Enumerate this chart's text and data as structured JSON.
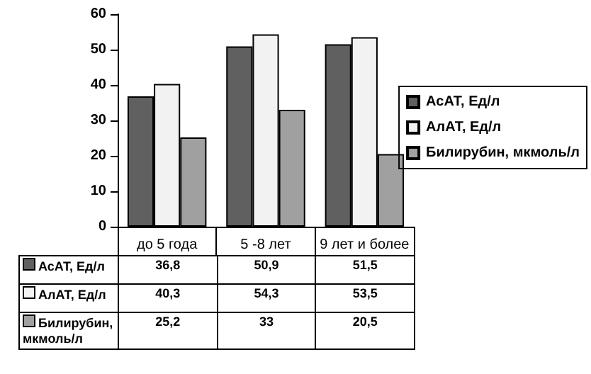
{
  "chart_data": {
    "type": "bar",
    "categories": [
      "до 5 года",
      "5 -8 лет",
      "9 лет и более"
    ],
    "series": [
      {
        "name": "АсАТ, Ед/л",
        "color": "#606060",
        "values": [
          36.8,
          50.9,
          51.5
        ],
        "value_labels": [
          "36,8",
          "50,9",
          "51,5"
        ]
      },
      {
        "name": "АлАТ, Ед/л",
        "color": "#f2f2f2",
        "values": [
          40.3,
          54.3,
          53.5
        ],
        "value_labels": [
          "40,3",
          "54,3",
          "53,5"
        ]
      },
      {
        "name": "Билирубин, мкмоль/л",
        "color": "#a0a0a0",
        "values": [
          25.2,
          33,
          20.5
        ],
        "value_labels": [
          "25,2",
          "33",
          "20,5"
        ]
      }
    ],
    "ylim": [
      0,
      60
    ],
    "yticks": [
      0,
      10,
      20,
      30,
      40,
      50,
      60
    ],
    "grid": false,
    "legend": "right"
  }
}
